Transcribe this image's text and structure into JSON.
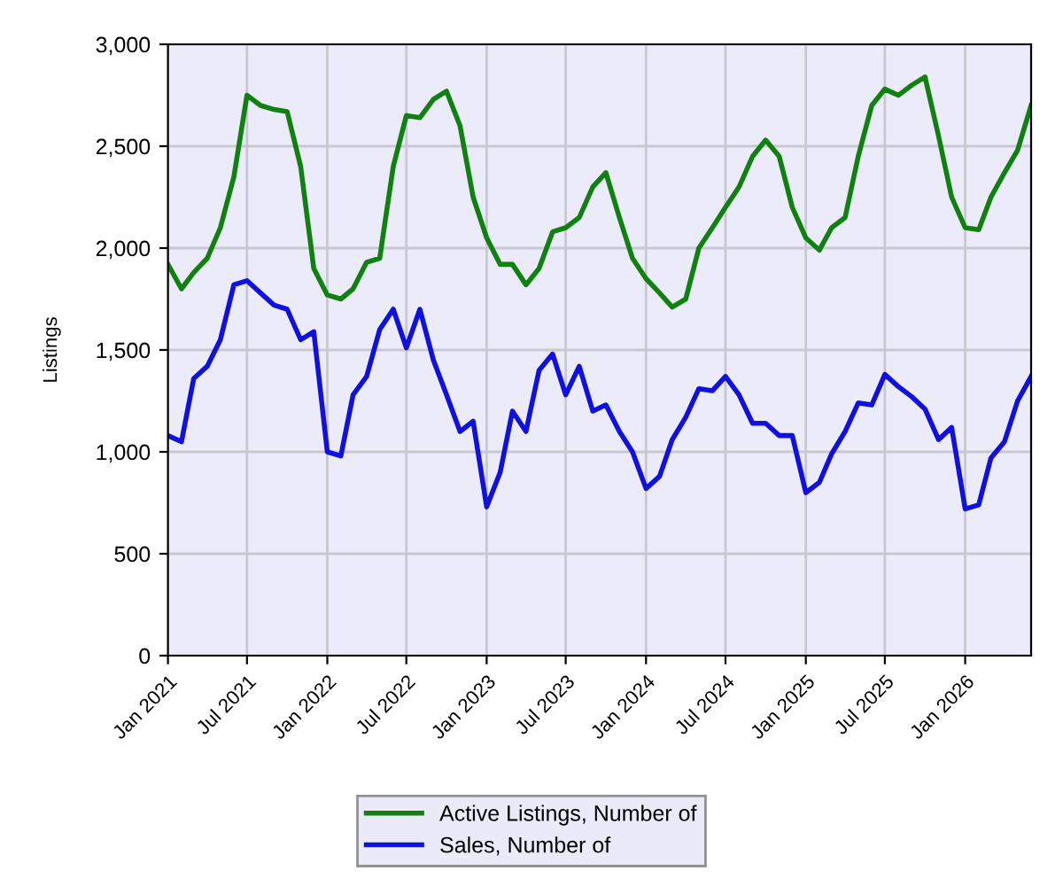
{
  "chart_data": {
    "type": "line",
    "ylabel": "Listings",
    "x": [
      "2021-01",
      "2021-02",
      "2021-03",
      "2021-04",
      "2021-05",
      "2021-06",
      "2021-07",
      "2021-08",
      "2021-09",
      "2021-10",
      "2021-11",
      "2021-12",
      "2022-01",
      "2022-02",
      "2022-03",
      "2022-04",
      "2022-05",
      "2022-06",
      "2022-07",
      "2022-08",
      "2022-09",
      "2022-10",
      "2022-11",
      "2022-12",
      "2023-01",
      "2023-02",
      "2023-03",
      "2023-04",
      "2023-05",
      "2023-06",
      "2023-07",
      "2023-08",
      "2023-09",
      "2023-10",
      "2023-11",
      "2023-12",
      "2024-01",
      "2024-02",
      "2024-03",
      "2024-04",
      "2024-05",
      "2024-06",
      "2024-07",
      "2024-08",
      "2024-09",
      "2024-10",
      "2024-11",
      "2024-12",
      "2025-01",
      "2025-02",
      "2025-03",
      "2025-04",
      "2025-05",
      "2025-06",
      "2025-07",
      "2025-08",
      "2025-09",
      "2025-10",
      "2025-11",
      "2025-12",
      "2026-01",
      "2026-02",
      "2026-03",
      "2026-04",
      "2026-05",
      "2026-06"
    ],
    "series": [
      {
        "name": "Active Listings, Number of",
        "color": "#108010",
        "values": [
          1920,
          1800,
          1880,
          1950,
          2100,
          2350,
          2750,
          2700,
          2680,
          2670,
          2400,
          1900,
          1770,
          1750,
          1800,
          1930,
          1950,
          2400,
          2650,
          2640,
          2730,
          2770,
          2600,
          2250,
          2050,
          1920,
          1920,
          1820,
          1900,
          2080,
          2100,
          2150,
          2300,
          2370,
          2150,
          1950,
          1850,
          1780,
          1710,
          1750,
          2000,
          2100,
          2200,
          2300,
          2450,
          2530,
          2450,
          2200,
          2050,
          1990,
          2100,
          2150,
          2450,
          2700,
          2780,
          2750,
          2800,
          2840,
          2550,
          2250,
          2100,
          2090,
          2250,
          2370,
          2480,
          2700
        ]
      },
      {
        "name": "Sales, Number of",
        "color": "#1010e0",
        "values": [
          1080,
          1050,
          1360,
          1420,
          1550,
          1820,
          1840,
          1780,
          1720,
          1700,
          1550,
          1590,
          1000,
          980,
          1280,
          1370,
          1600,
          1700,
          1510,
          1700,
          1450,
          1280,
          1100,
          1150,
          730,
          900,
          1200,
          1100,
          1400,
          1480,
          1280,
          1420,
          1200,
          1230,
          1100,
          1000,
          820,
          880,
          1060,
          1170,
          1310,
          1300,
          1370,
          1280,
          1140,
          1140,
          1080,
          1080,
          800,
          850,
          990,
          1100,
          1240,
          1230,
          1380,
          1320,
          1270,
          1210,
          1060,
          1120,
          720,
          740,
          970,
          1050,
          1250,
          1370
        ]
      }
    ],
    "xlim": [
      "2021-01",
      "2026-06"
    ],
    "xticks": [
      {
        "value": "2021-01",
        "label": "Jan 2021"
      },
      {
        "value": "2021-07",
        "label": "Jul 2021"
      },
      {
        "value": "2022-01",
        "label": "Jan 2022"
      },
      {
        "value": "2022-07",
        "label": "Jul 2022"
      },
      {
        "value": "2023-01",
        "label": "Jan 2023"
      },
      {
        "value": "2023-07",
        "label": "Jul 2023"
      },
      {
        "value": "2024-01",
        "label": "Jan 2024"
      },
      {
        "value": "2024-07",
        "label": "Jul 2024"
      },
      {
        "value": "2025-01",
        "label": "Jan 2025"
      },
      {
        "value": "2025-07",
        "label": "Jul 2025"
      },
      {
        "value": "2026-01",
        "label": "Jan 2026"
      }
    ],
    "ylim": [
      0,
      3000
    ],
    "yticks": [
      0,
      500,
      {
        "value": 1000,
        "label": "1,000"
      },
      {
        "value": 1500,
        "label": "1,500"
      },
      {
        "value": 2000,
        "label": "2,000"
      },
      {
        "value": 2500,
        "label": "2,500"
      },
      {
        "value": 3000,
        "label": "3,000"
      }
    ],
    "grid": true,
    "legend": "bottom",
    "marker": "none",
    "line_style": "solid"
  }
}
